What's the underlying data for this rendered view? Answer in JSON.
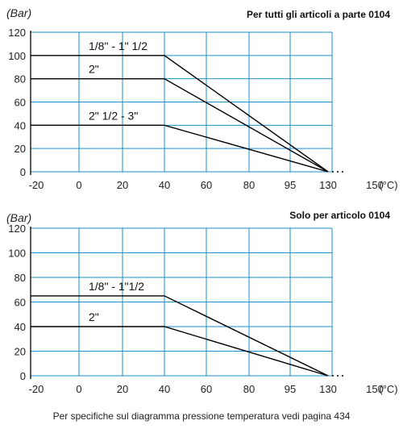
{
  "footer": "Per specifiche sul diagramma pressione temperatura vedi pagina 434",
  "chart_data": [
    {
      "type": "line",
      "title": "Per tutti gli articoli a parte 0104",
      "ylabel": "(Bar)",
      "xlabel": "(°C)",
      "x_tick_labels": [
        "-20",
        "0",
        "20",
        "40",
        "60",
        "80",
        "95",
        "130",
        "150"
      ],
      "y_ticks": [
        0,
        20,
        40,
        60,
        80,
        100,
        120
      ],
      "ylim": [
        0,
        120
      ],
      "grid": true,
      "series": [
        {
          "name": "1/8\" - 1\" 1/2",
          "x": [
            "-20",
            "40",
            "130"
          ],
          "y": [
            100,
            100,
            0
          ]
        },
        {
          "name": "2\"",
          "x": [
            "-20",
            "40",
            "130"
          ],
          "y": [
            80,
            80,
            0
          ]
        },
        {
          "name": "2\" 1/2 - 3\"",
          "x": [
            "-20",
            "40",
            "130"
          ],
          "y": [
            40,
            40,
            0
          ]
        }
      ]
    },
    {
      "type": "line",
      "title": "Solo per articolo 0104",
      "ylabel": "(Bar)",
      "xlabel": "(°C)",
      "x_tick_labels": [
        "-20",
        "0",
        "20",
        "40",
        "60",
        "80",
        "95",
        "130",
        "150"
      ],
      "y_ticks": [
        0,
        20,
        40,
        60,
        80,
        100,
        120
      ],
      "ylim": [
        0,
        120
      ],
      "grid": true,
      "series": [
        {
          "name": "1/8\" - 1\"1/2",
          "x": [
            "-20",
            "40",
            "130"
          ],
          "y": [
            65,
            65,
            0
          ]
        },
        {
          "name": "2\"",
          "x": [
            "-20",
            "40",
            "130"
          ],
          "y": [
            40,
            40,
            0
          ]
        }
      ]
    }
  ]
}
